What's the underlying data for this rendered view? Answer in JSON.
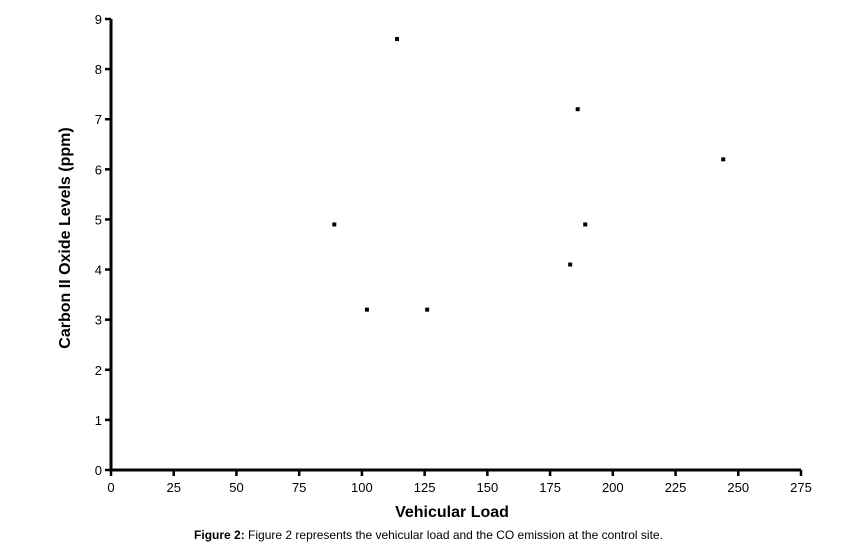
{
  "chart_data": {
    "type": "scatter",
    "xlabel": "Vehicular Load",
    "ylabel": "Carbon II Oxide Levels (ppm)",
    "xlim": [
      0,
      275
    ],
    "ylim": [
      0,
      9
    ],
    "x_ticks": [
      0,
      25,
      50,
      75,
      100,
      125,
      150,
      175,
      200,
      225,
      250,
      275
    ],
    "y_ticks": [
      0,
      1,
      2,
      3,
      4,
      5,
      6,
      7,
      8,
      9
    ],
    "grid": false,
    "marker_color": "#000000",
    "points": [
      {
        "x": 89,
        "y": 4.9
      },
      {
        "x": 102,
        "y": 3.2
      },
      {
        "x": 114,
        "y": 8.6
      },
      {
        "x": 126,
        "y": 3.2
      },
      {
        "x": 183,
        "y": 4.1
      },
      {
        "x": 186,
        "y": 7.2
      },
      {
        "x": 189,
        "y": 4.9
      },
      {
        "x": 244,
        "y": 6.2
      }
    ]
  },
  "caption": {
    "label": "Figure 2:",
    "text": " Figure 2 represents the vehicular load and the CO emission at the control site."
  }
}
